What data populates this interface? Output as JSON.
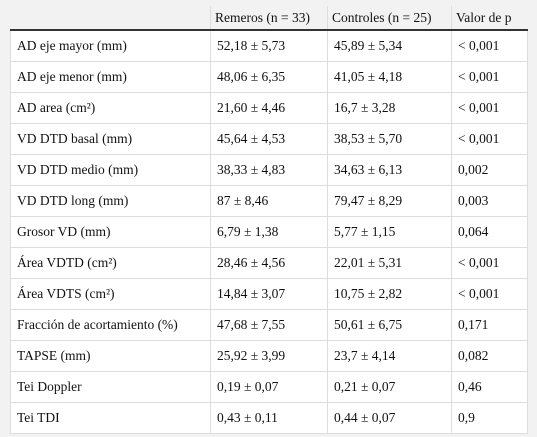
{
  "table": {
    "header": [
      "Remeros (n = 33)",
      "Controles (n = 25)",
      "Valor de p"
    ],
    "rows": [
      [
        "AD eje mayor (mm)",
        "52,18 ± 5,73",
        "45,89 ± 5,34",
        "< 0,001"
      ],
      [
        "AD eje menor (mm)",
        "48,06 ± 6,35",
        "41,05 ± 4,18",
        "< 0,001"
      ],
      [
        "AD area (cm²)",
        "21,60 ± 4,46",
        "16,7 ± 3,28",
        "< 0,001"
      ],
      [
        "VD DTD basal (mm)",
        "45,64 ± 4,53",
        "38,53 ± 5,70",
        "< 0,001"
      ],
      [
        "VD DTD medio (mm)",
        "38,33 ± 4,83",
        "34,63 ± 6,13",
        "0,002"
      ],
      [
        "VD DTD long (mm)",
        "87 ± 8,46",
        "79,47 ± 8,29",
        "0,003"
      ],
      [
        "Grosor VD (mm)",
        "6,79 ± 1,38",
        "5,77 ± 1,15",
        "0,064"
      ],
      [
        "Área VDTD (cm²)",
        "28,46 ± 4,56",
        "22,01 ± 5,31",
        "< 0,001"
      ],
      [
        "Área VDTS (cm²)",
        "14,84 ± 3,07",
        "10,75 ± 2,82",
        "< 0,001"
      ],
      [
        "Fracción de acortamiento (%)",
        "47,68 ± 7,55",
        "50,61 ± 6,75",
        "0,171"
      ],
      [
        "TAPSE (mm)",
        "25,92 ± 3,99",
        "23,7 ± 4,14",
        "0,082"
      ],
      [
        "Tei Doppler",
        "0,19 ± 0,07",
        "0,21 ± 0,07",
        "0,46"
      ],
      [
        "Tei TDI",
        "0,43 ± 0,11",
        "0,44 ± 0,07",
        "0,9"
      ]
    ]
  }
}
